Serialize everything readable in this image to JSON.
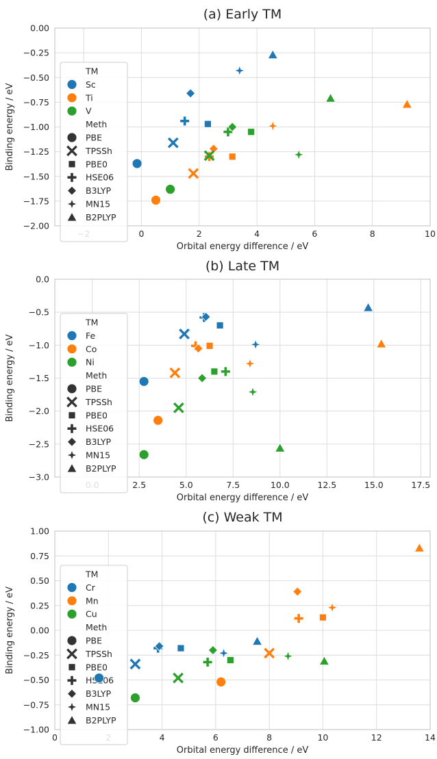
{
  "colors": {
    "series1": "#1f77b4",
    "series2": "#ff7f0e",
    "series3": "#2ca02c"
  },
  "chart_data": [
    {
      "type": "scatter",
      "title": "(a) Early TM",
      "xlabel": "Orbital energy difference / eV",
      "ylabel": "Binding energy / eV",
      "xlim": [
        -3,
        10
      ],
      "ylim": [
        -2.0,
        0.0
      ],
      "xticks": [
        "−2",
        "0",
        "2",
        "4",
        "6",
        "8",
        "10"
      ],
      "yticks": [
        "0.00",
        "−0.25",
        "−0.50",
        "−0.75",
        "−1.00",
        "−1.25",
        "−1.50",
        "−1.75",
        "−2.00"
      ],
      "grid": true,
      "legend_position": "left",
      "legend": {
        "hue_title": "TM",
        "hue": [
          "Sc",
          "Ti",
          "V"
        ],
        "style_title": "Meth",
        "style": [
          "PBE",
          "TPSSh",
          "PBE0",
          "HSE06",
          "B3LYP",
          "MN15",
          "B2PLYP"
        ]
      },
      "series": [
        {
          "name": "Sc",
          "points": [
            {
              "m": "PBE",
              "x": -0.15,
              "y": -1.37
            },
            {
              "m": "TPSSh",
              "x": 1.1,
              "y": -1.16
            },
            {
              "m": "PBE0",
              "x": 2.3,
              "y": -0.97
            },
            {
              "m": "HSE06",
              "x": 1.5,
              "y": -0.94
            },
            {
              "m": "B3LYP",
              "x": 1.7,
              "y": -0.66
            },
            {
              "m": "MN15",
              "x": 3.4,
              "y": -0.43
            },
            {
              "m": "B2PLYP",
              "x": 4.55,
              "y": -0.27
            }
          ]
        },
        {
          "name": "Ti",
          "points": [
            {
              "m": "PBE",
              "x": 0.5,
              "y": -1.74
            },
            {
              "m": "TPSSh",
              "x": 1.8,
              "y": -1.47
            },
            {
              "m": "PBE0",
              "x": 3.15,
              "y": -1.3
            },
            {
              "m": "HSE06",
              "x": 2.35,
              "y": -1.3
            },
            {
              "m": "B3LYP",
              "x": 2.5,
              "y": -1.22
            },
            {
              "m": "MN15",
              "x": 4.55,
              "y": -0.99
            },
            {
              "m": "B2PLYP",
              "x": 9.2,
              "y": -0.77
            }
          ]
        },
        {
          "name": "V",
          "points": [
            {
              "m": "PBE",
              "x": 1.0,
              "y": -1.63
            },
            {
              "m": "TPSSh",
              "x": 2.35,
              "y": -1.29
            },
            {
              "m": "PBE0",
              "x": 3.8,
              "y": -1.05
            },
            {
              "m": "HSE06",
              "x": 3.0,
              "y": -1.05
            },
            {
              "m": "B3LYP",
              "x": 3.15,
              "y": -1.0
            },
            {
              "m": "MN15",
              "x": 5.45,
              "y": -1.28
            },
            {
              "m": "B2PLYP",
              "x": 6.55,
              "y": -0.71
            }
          ]
        }
      ]
    },
    {
      "type": "scatter",
      "title": "(b) Late TM",
      "xlabel": "Orbital energy difference / eV",
      "ylabel": "Binding energy / eV",
      "xlim": [
        -2,
        18
      ],
      "ylim": [
        -3.0,
        0.0
      ],
      "xticks": [
        "0.0",
        "2.5",
        "5.0",
        "7.5",
        "10.0",
        "12.5",
        "15.0",
        "17.5"
      ],
      "yticks": [
        "0.0",
        "−0.5",
        "−1.0",
        "−1.5",
        "−2.0",
        "−2.5",
        "−3.0"
      ],
      "grid": true,
      "legend_position": "left",
      "legend": {
        "hue_title": "TM",
        "hue": [
          "Fe",
          "Co",
          "Ni"
        ],
        "style_title": "Meth",
        "style": [
          "PBE",
          "TPSSh",
          "PBE0",
          "HSE06",
          "B3LYP",
          "MN15",
          "B2PLYP"
        ]
      },
      "series": [
        {
          "name": "Fe",
          "points": [
            {
              "m": "PBE",
              "x": 2.75,
              "y": -1.55
            },
            {
              "m": "TPSSh",
              "x": 4.9,
              "y": -0.83
            },
            {
              "m": "PBE0",
              "x": 6.8,
              "y": -0.7
            },
            {
              "m": "HSE06",
              "x": 5.95,
              "y": -0.58
            },
            {
              "m": "B3LYP",
              "x": 6.05,
              "y": -0.57
            },
            {
              "m": "MN15",
              "x": 8.7,
              "y": -0.99
            },
            {
              "m": "B2PLYP",
              "x": 14.7,
              "y": -0.43
            }
          ]
        },
        {
          "name": "Co",
          "points": [
            {
              "m": "PBE",
              "x": 3.5,
              "y": -2.14
            },
            {
              "m": "TPSSh",
              "x": 4.4,
              "y": -1.42
            },
            {
              "m": "PBE0",
              "x": 6.25,
              "y": -1.01
            },
            {
              "m": "HSE06",
              "x": 5.5,
              "y": -1.01
            },
            {
              "m": "B3LYP",
              "x": 5.65,
              "y": -1.05
            },
            {
              "m": "MN15",
              "x": 8.4,
              "y": -1.28
            },
            {
              "m": "B2PLYP",
              "x": 15.4,
              "y": -0.98
            }
          ]
        },
        {
          "name": "Ni",
          "points": [
            {
              "m": "PBE",
              "x": 2.75,
              "y": -2.66
            },
            {
              "m": "TPSSh",
              "x": 4.6,
              "y": -1.95
            },
            {
              "m": "PBE0",
              "x": 6.5,
              "y": -1.4
            },
            {
              "m": "HSE06",
              "x": 7.1,
              "y": -1.4
            },
            {
              "m": "B3LYP",
              "x": 5.85,
              "y": -1.5
            },
            {
              "m": "MN15",
              "x": 8.55,
              "y": -1.71
            },
            {
              "m": "B2PLYP",
              "x": 10.0,
              "y": -2.56
            }
          ]
        }
      ]
    },
    {
      "type": "scatter",
      "title": "(c) Weak TM",
      "xlabel": "Orbital energy difference / eV",
      "ylabel": "Binding energy / eV",
      "xlim": [
        0,
        14
      ],
      "ylim": [
        -1.0,
        1.0
      ],
      "xticks": [
        "0",
        "2",
        "4",
        "6",
        "8",
        "10",
        "12",
        "14"
      ],
      "yticks": [
        "1.00",
        "0.75",
        "0.50",
        "0.25",
        "0.00",
        "−0.25",
        "−0.50",
        "−0.75",
        "−1.00"
      ],
      "grid": true,
      "legend_position": "left",
      "legend": {
        "hue_title": "TM",
        "hue": [
          "Cr",
          "Mn",
          "Cu"
        ],
        "style_title": "Meth",
        "style": [
          "PBE",
          "TPSSh",
          "PBE0",
          "HSE06",
          "B3LYP",
          "MN15",
          "B2PLYP"
        ]
      },
      "series": [
        {
          "name": "Cr",
          "points": [
            {
              "m": "PBE",
              "x": 1.65,
              "y": -0.48
            },
            {
              "m": "TPSSh",
              "x": 3.0,
              "y": -0.34
            },
            {
              "m": "PBE0",
              "x": 4.7,
              "y": -0.18
            },
            {
              "m": "HSE06",
              "x": 3.85,
              "y": -0.18
            },
            {
              "m": "B3LYP",
              "x": 3.9,
              "y": -0.16
            },
            {
              "m": "MN15",
              "x": 6.3,
              "y": -0.23
            },
            {
              "m": "B2PLYP",
              "x": 7.55,
              "y": -0.11
            }
          ]
        },
        {
          "name": "Mn",
          "points": [
            {
              "m": "PBE",
              "x": 6.2,
              "y": -0.52
            },
            {
              "m": "TPSSh",
              "x": 8.0,
              "y": -0.23
            },
            {
              "m": "PBE0",
              "x": 10.0,
              "y": 0.13
            },
            {
              "m": "HSE06",
              "x": 9.1,
              "y": 0.12
            },
            {
              "m": "B3LYP",
              "x": 9.05,
              "y": 0.39
            },
            {
              "m": "MN15",
              "x": 10.35,
              "y": 0.23
            },
            {
              "m": "B2PLYP",
              "x": 13.6,
              "y": 0.83
            }
          ]
        },
        {
          "name": "Cu",
          "points": [
            {
              "m": "PBE",
              "x": 3.0,
              "y": -0.68
            },
            {
              "m": "TPSSh",
              "x": 4.6,
              "y": -0.48
            },
            {
              "m": "PBE0",
              "x": 6.55,
              "y": -0.3
            },
            {
              "m": "HSE06",
              "x": 5.7,
              "y": -0.32
            },
            {
              "m": "B3LYP",
              "x": 5.9,
              "y": -0.2
            },
            {
              "m": "MN15",
              "x": 8.7,
              "y": -0.26
            },
            {
              "m": "B2PLYP",
              "x": 10.05,
              "y": -0.31
            }
          ]
        }
      ]
    }
  ]
}
